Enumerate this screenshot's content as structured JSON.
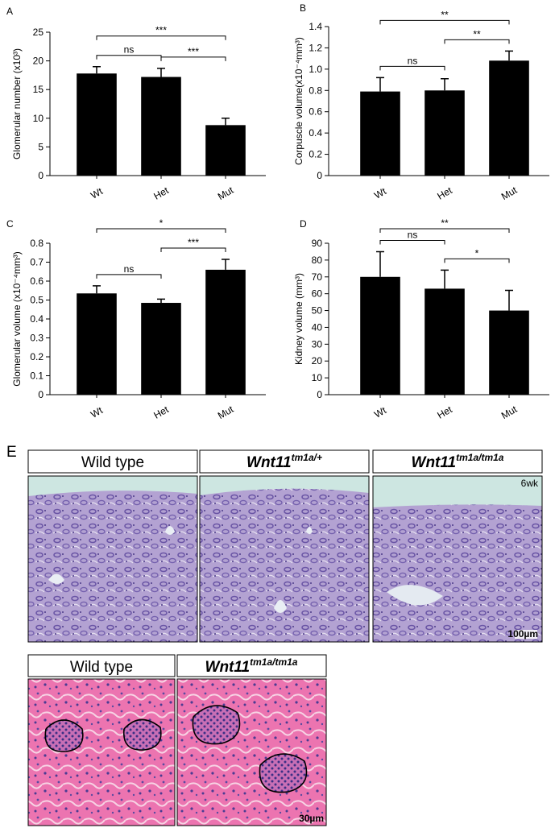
{
  "chart_data": [
    {
      "type": "bar",
      "panel": "A",
      "ylabel": "Glomerular number (x10³)",
      "categories": [
        "Wt",
        "Het",
        "Mut"
      ],
      "values": [
        17.8,
        17.2,
        8.8
      ],
      "errors": [
        1.2,
        1.5,
        1.2
      ],
      "color": "#000000",
      "ylim": [
        0,
        25
      ],
      "yticks": [
        0,
        5,
        10,
        15,
        20,
        25
      ],
      "comparisons": [
        {
          "pair": [
            0,
            1
          ],
          "label": "ns"
        },
        {
          "pair": [
            1,
            2
          ],
          "label": "***"
        },
        {
          "pair": [
            0,
            2
          ],
          "label": "***"
        }
      ]
    },
    {
      "type": "bar",
      "panel": "B",
      "ylabel": "Corpuscle volume(x10⁻⁴mm³)",
      "categories": [
        "Wt",
        "Het",
        "Mut"
      ],
      "values": [
        0.79,
        0.8,
        1.08
      ],
      "errors": [
        0.13,
        0.11,
        0.09
      ],
      "color": "#000000",
      "ylim": [
        0,
        1.4
      ],
      "yticks": [
        0,
        0.2,
        0.4,
        0.6,
        0.8,
        {
          "value": 1,
          "label": "1.0"
        },
        1.2,
        1.4
      ],
      "comparisons": [
        {
          "pair": [
            0,
            1
          ],
          "label": "ns"
        },
        {
          "pair": [
            1,
            2
          ],
          "label": "**"
        },
        {
          "pair": [
            0,
            2
          ],
          "label": "**"
        }
      ]
    },
    {
      "type": "bar",
      "panel": "C",
      "ylabel": "Glomerular volume (x10⁻⁴mm³)",
      "categories": [
        "Wt",
        "Het",
        "Mut"
      ],
      "values": [
        0.535,
        0.485,
        0.66
      ],
      "errors": [
        0.04,
        0.02,
        0.055
      ],
      "color": "#000000",
      "ylim": [
        0,
        0.8
      ],
      "yticks": [
        0,
        0.1,
        0.2,
        0.3,
        0.4,
        0.5,
        0.6,
        0.7,
        0.8
      ],
      "comparisons": [
        {
          "pair": [
            0,
            1
          ],
          "label": "ns"
        },
        {
          "pair": [
            1,
            2
          ],
          "label": "***"
        },
        {
          "pair": [
            0,
            2
          ],
          "label": "*"
        }
      ]
    },
    {
      "type": "bar",
      "panel": "D",
      "ylabel": "Kidney volume (mm³)",
      "categories": [
        "Wt",
        "Het",
        "Mut"
      ],
      "values": [
        70,
        63,
        50
      ],
      "errors": [
        15,
        11,
        12
      ],
      "color": "#000000",
      "ylim": [
        0,
        90
      ],
      "yticks": [
        0,
        10,
        20,
        30,
        40,
        50,
        60,
        70,
        80,
        90
      ],
      "comparisons": [
        {
          "pair": [
            0,
            1
          ],
          "label": "ns"
        },
        {
          "pair": [
            1,
            2
          ],
          "label": "*"
        },
        {
          "pair": [
            0,
            2
          ],
          "label": "**"
        }
      ]
    }
  ],
  "histology": {
    "panel": "E",
    "top_row": {
      "labels": [
        {
          "text": "Wild type"
        },
        {
          "text": "Wnt11",
          "sup": "tm1a/+"
        },
        {
          "text": "Wnt11",
          "sup": "tm1a/tm1a"
        }
      ],
      "age": "6wk",
      "scale_bar": "100µm"
    },
    "bottom_row": {
      "labels": [
        {
          "text": "Wild type"
        },
        {
          "text": "Wnt11",
          "sup": "tm1a/tm1a"
        }
      ],
      "scale_bar": "30µm"
    }
  }
}
